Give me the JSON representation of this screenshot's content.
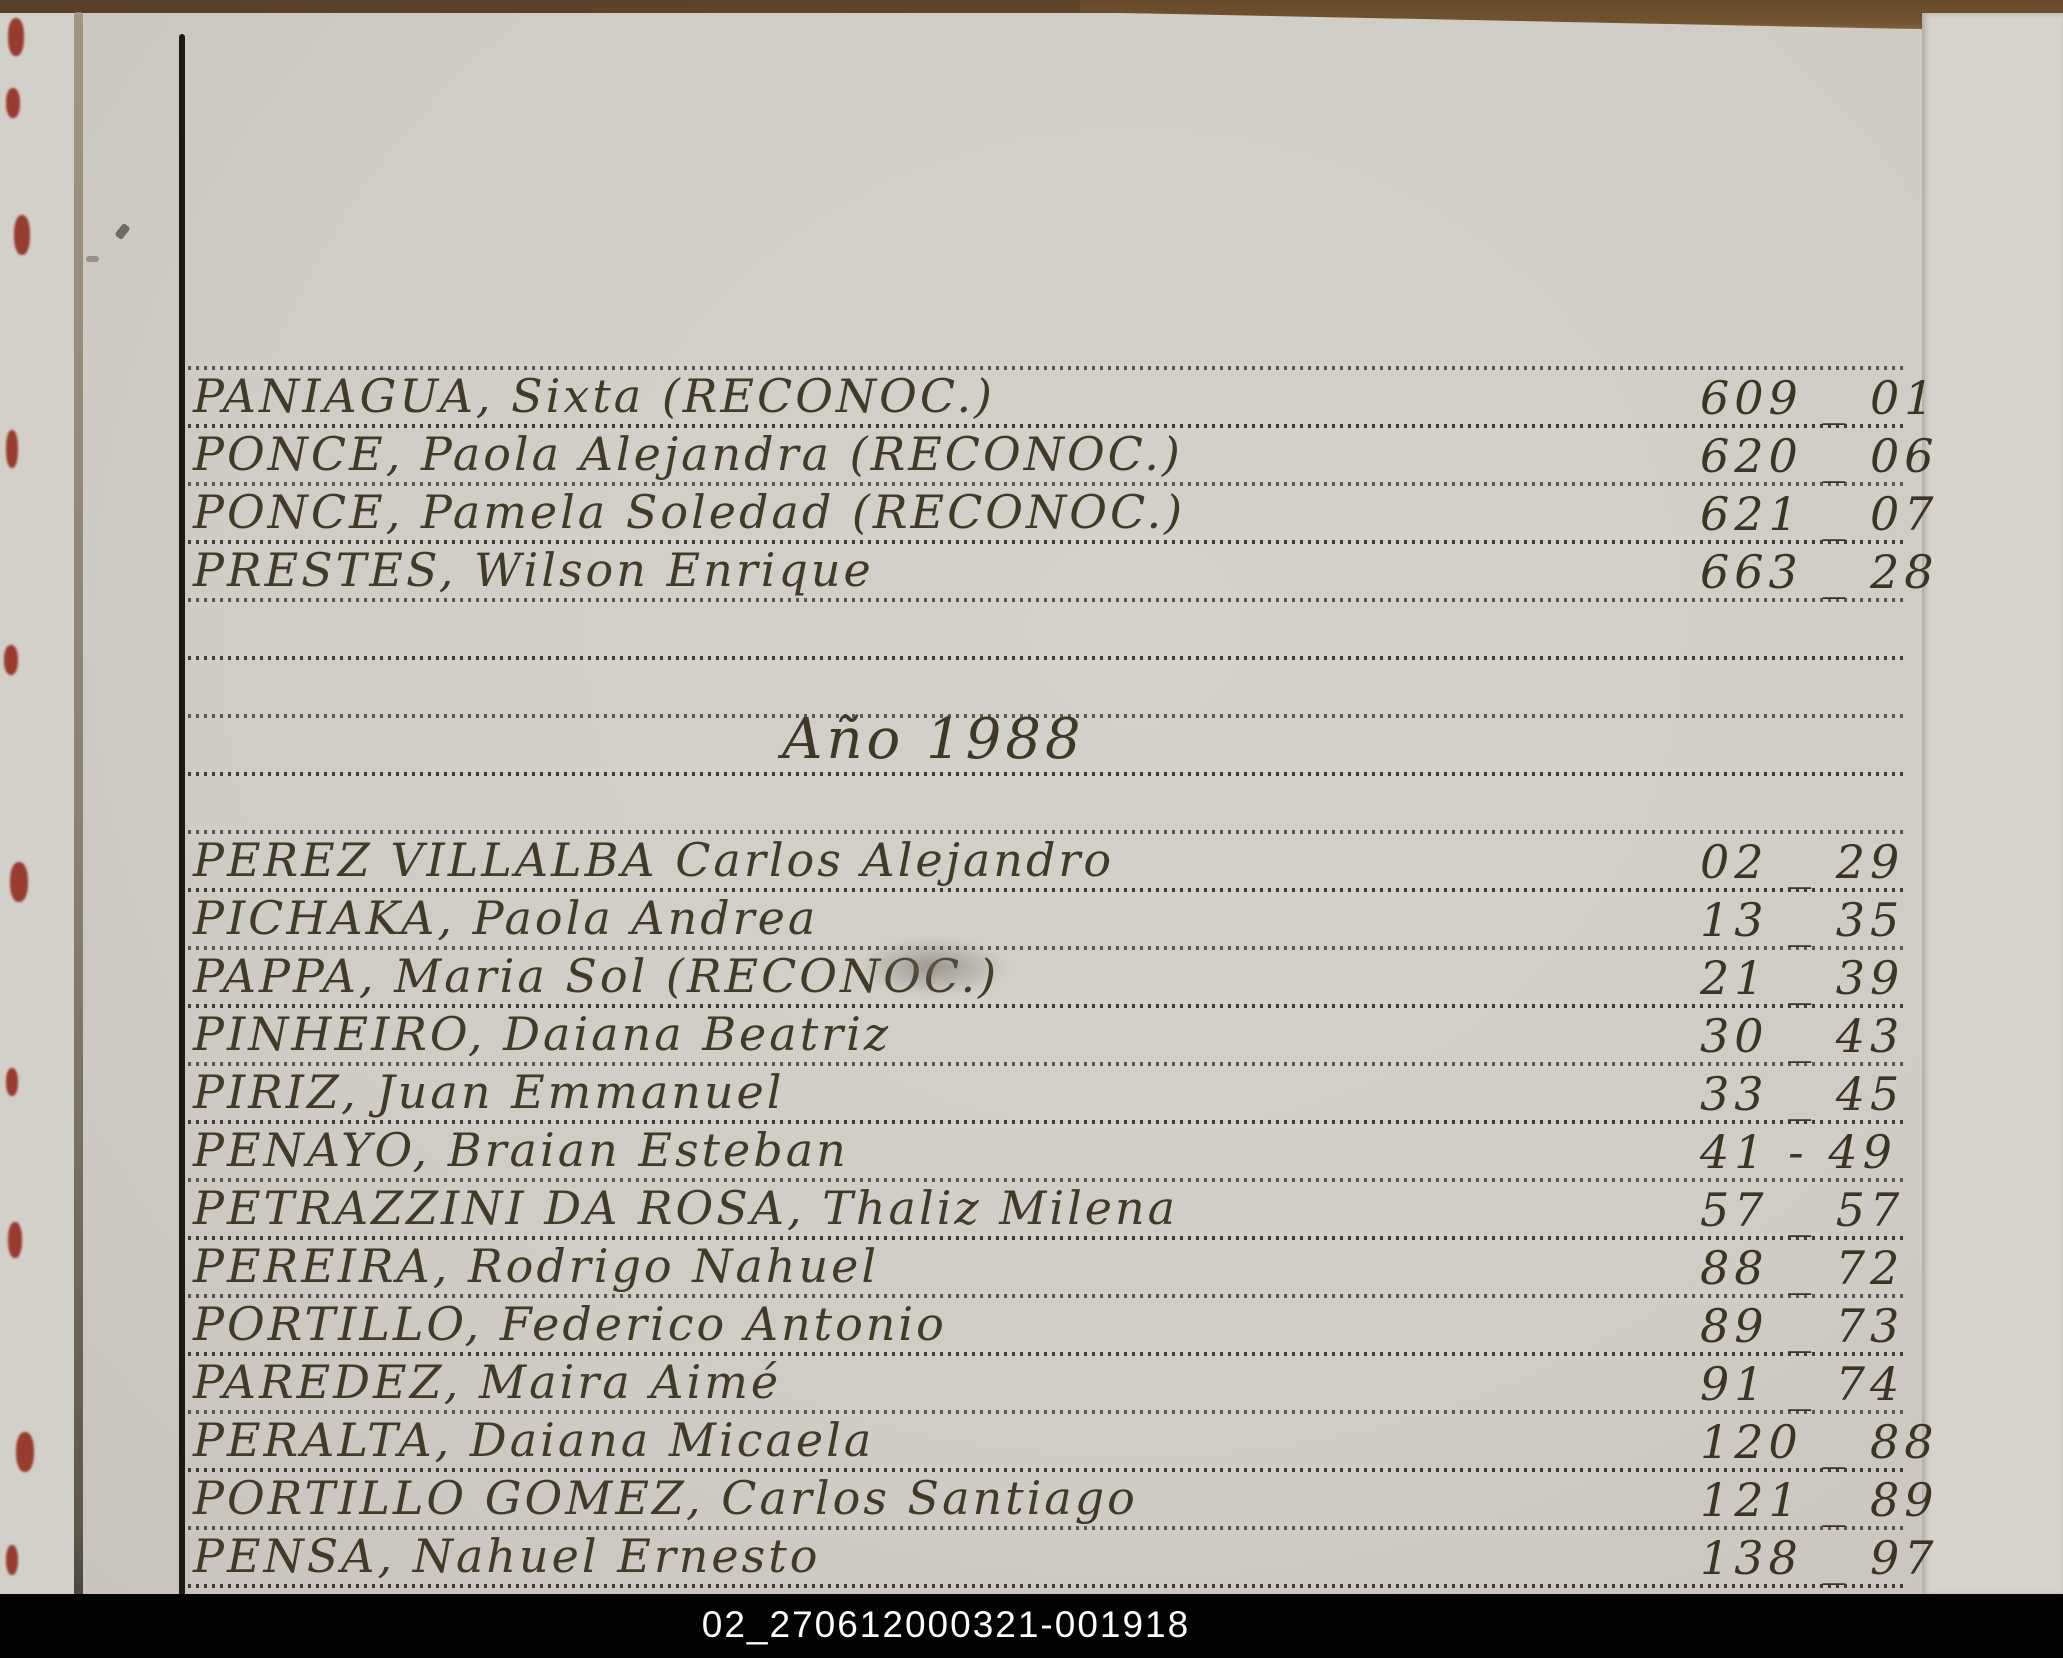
{
  "document": {
    "year_heading": "Año 1988",
    "caption": "02_270612000321-001918",
    "sections": [
      {
        "entries": [
          {
            "name": "PANIAGUA, Sixta (RECONOC.)",
            "num": "609 _ 01"
          },
          {
            "name": "PONCE, Paola Alejandra (RECONOC.)",
            "num": "620 _ 06"
          },
          {
            "name": "PONCE, Pamela Soledad (RECONOC.)",
            "num": "621 _ 07"
          },
          {
            "name": "PRESTES, Wilson Enrique",
            "num": "663 _ 28"
          }
        ]
      },
      {
        "entries": [
          {
            "name": "PEREZ VILLALBA Carlos Alejandro",
            "num": "02 _ 29"
          },
          {
            "name": "PICHAKA, Paola Andrea",
            "num": "13 _ 35"
          },
          {
            "name": "PAPPA, Maria Sol (RECONOC.)",
            "num": "21 _ 39"
          },
          {
            "name": "PINHEIRO, Daiana Beatriz",
            "num": "30 _ 43"
          },
          {
            "name": "PIRIZ, Juan Emmanuel",
            "num": "33 _ 45"
          },
          {
            "name": "PENAYO, Braian Esteban",
            "num": "41 - 49"
          },
          {
            "name": "PETRAZZINI DA ROSA, Thaliz Milena",
            "num": "57 _ 57"
          },
          {
            "name": "PEREIRA, Rodrigo Nahuel",
            "num": "88 _ 72"
          },
          {
            "name": "PORTILLO, Federico Antonio",
            "num": "89 _ 73"
          },
          {
            "name": "PAREDEZ, Maira Aimé",
            "num": "91 _ 74"
          },
          {
            "name": "PERALTA, Daiana Micaela",
            "num": "120 _ 88"
          },
          {
            "name": "PORTILLO GOMEZ, Carlos Santiago",
            "num": "121 _ 89"
          },
          {
            "name": "PENSA, Nahuel Ernesto",
            "num": "138 _ 97"
          }
        ]
      }
    ],
    "colors": {
      "ink": "#413a26",
      "page": "#d0ccc6",
      "cover_red": "#8e2316",
      "scan_bar": "#030303"
    }
  }
}
